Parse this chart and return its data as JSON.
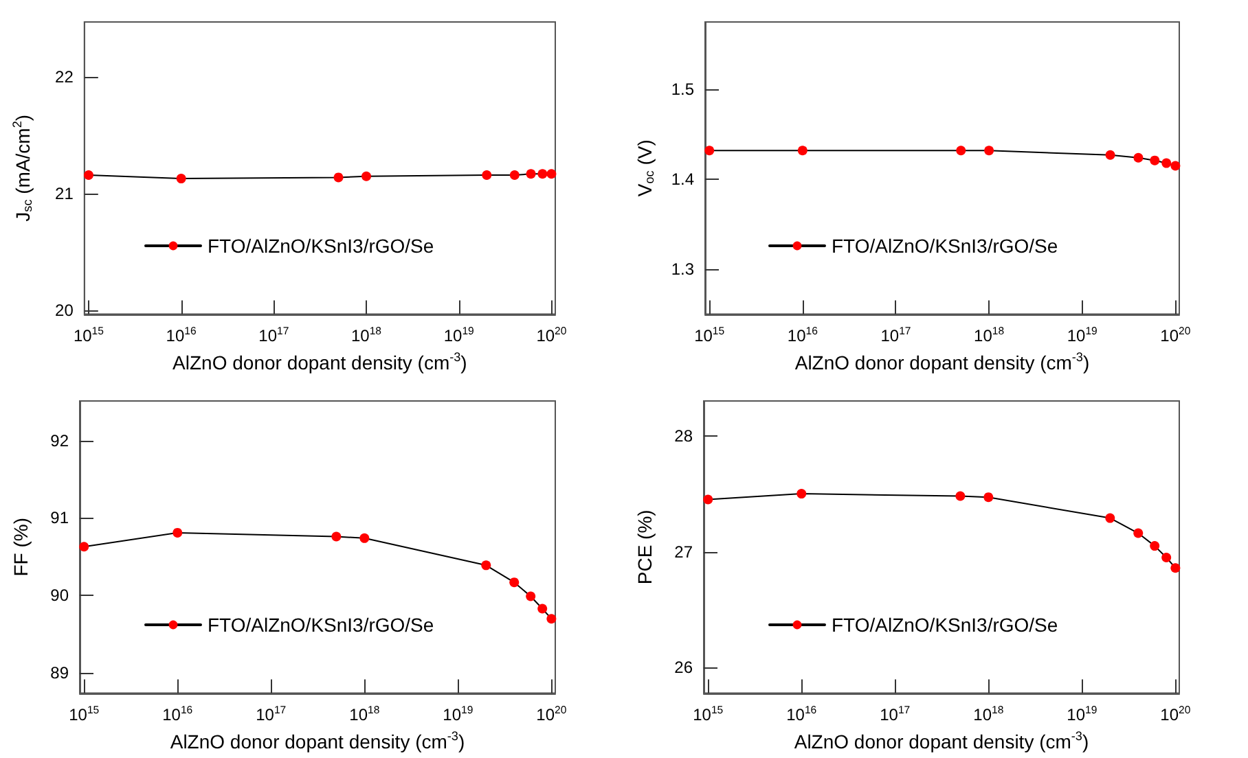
{
  "chart_data": [
    {
      "type": "line",
      "xlabel": "AlZnO donor dopant density (cm$^{-3}$)",
      "ylabel": "J$_{sc}$ (mA/cm$^{2}$)",
      "log": "x",
      "grid": false,
      "legend": "bottom",
      "marker": "circle",
      "line_style": "solid",
      "x": [
        1000000000000000.0,
        1e+16,
        5e+17,
        1e+18,
        2e+19,
        4e+19,
        6e+19,
        8e+19,
        1e+20
      ],
      "xlim": [
        900000000000000.0,
        1.1e+20
      ],
      "xticks": [
        {
          "value": 1000000000000000.0,
          "label": "10$^{15}$"
        },
        {
          "value": 1e+16,
          "label": "10$^{16}$"
        },
        {
          "value": 1e+17,
          "label": "10$^{17}$"
        },
        {
          "value": 1e+18,
          "label": "10$^{18}$"
        },
        {
          "value": 1e+19,
          "label": "10$^{19}$"
        },
        {
          "value": 1e+20,
          "label": "10$^{20}$"
        }
      ],
      "ylim": [
        19.97,
        22.47
      ],
      "yticks": [
        20,
        21,
        22
      ],
      "series": [
        {
          "name": "FTO/AlZnO/KSnI3/rGO/Se",
          "color": "#ff0000",
          "values": [
            21.16,
            21.13,
            21.14,
            21.15,
            21.16,
            21.16,
            21.17,
            21.17,
            21.17
          ]
        }
      ]
    },
    {
      "type": "line",
      "xlabel": "AlZnO donor dopant density (cm$^{-3}$)",
      "ylabel": "V$_{oc}$ (V)",
      "log": "x",
      "grid": false,
      "legend": "bottom",
      "marker": "circle",
      "line_style": "solid",
      "x": [
        1000000000000000.0,
        1e+16,
        5e+17,
        1e+18,
        2e+19,
        4e+19,
        6e+19,
        8e+19,
        1e+20
      ],
      "xlim": [
        900000000000000.0,
        1.1e+20
      ],
      "xticks": [
        {
          "value": 1000000000000000.0,
          "label": "10$^{15}$"
        },
        {
          "value": 1e+16,
          "label": "10$^{16}$"
        },
        {
          "value": 1e+17,
          "label": "10$^{17}$"
        },
        {
          "value": 1e+18,
          "label": "10$^{18}$"
        },
        {
          "value": 1e+19,
          "label": "10$^{19}$"
        },
        {
          "value": 1e+20,
          "label": "10$^{20}$"
        }
      ],
      "ylim": [
        1.25,
        1.575
      ],
      "yticks": [
        1.3,
        1.4,
        1.5
      ],
      "series": [
        {
          "name": "FTO/AlZnO/KSnI3/rGO/Se",
          "color": "#ff0000",
          "values": [
            1.432,
            1.432,
            1.432,
            1.432,
            1.427,
            1.424,
            1.421,
            1.418,
            1.415
          ]
        }
      ]
    },
    {
      "type": "line",
      "xlabel": "AlZnO donor dopant density (cm$^{-3}$)",
      "ylabel": "FF (%)",
      "log": "x",
      "grid": false,
      "legend": "bottom",
      "marker": "circle",
      "line_style": "solid",
      "x": [
        1000000000000000.0,
        1e+16,
        5e+17,
        1e+18,
        2e+19,
        4e+19,
        6e+19,
        8e+19,
        1e+20
      ],
      "xlim": [
        900000000000000.0,
        1.1e+20
      ],
      "xticks": [
        {
          "value": 1000000000000000.0,
          "label": "10$^{15}$"
        },
        {
          "value": 1e+16,
          "label": "10$^{16}$"
        },
        {
          "value": 1e+17,
          "label": "10$^{17}$"
        },
        {
          "value": 1e+18,
          "label": "10$^{18}$"
        },
        {
          "value": 1e+19,
          "label": "10$^{19}$"
        },
        {
          "value": 1e+20,
          "label": "10$^{20}$"
        }
      ],
      "ylim": [
        88.74,
        92.51
      ],
      "yticks": [
        89,
        90,
        91,
        92
      ],
      "series": [
        {
          "name": "FTO/AlZnO/KSnI3/rGO/Se",
          "color": "#ff0000",
          "values": [
            90.63,
            90.81,
            90.76,
            90.74,
            90.39,
            90.17,
            89.99,
            89.83,
            89.7
          ]
        }
      ]
    },
    {
      "type": "line",
      "xlabel": "AlZnO donor dopant density (cm$^{-3}$)",
      "ylabel": "PCE (%)",
      "log": "x",
      "grid": false,
      "legend": "bottom",
      "marker": "circle",
      "line_style": "solid",
      "x": [
        1000000000000000.0,
        1e+16,
        5e+17,
        1e+18,
        2e+19,
        4e+19,
        6e+19,
        8e+19,
        1e+20
      ],
      "xlim": [
        900000000000000.0,
        1.1e+20
      ],
      "xticks": [
        {
          "value": 1000000000000000.0,
          "label": "10$^{15}$"
        },
        {
          "value": 1e+16,
          "label": "10$^{16}$"
        },
        {
          "value": 1e+17,
          "label": "10$^{17}$"
        },
        {
          "value": 1e+18,
          "label": "10$^{18}$"
        },
        {
          "value": 1e+19,
          "label": "10$^{19}$"
        },
        {
          "value": 1e+20,
          "label": "10$^{20}$"
        }
      ],
      "ylim": [
        25.78,
        28.3
      ],
      "yticks": [
        26,
        27,
        28
      ],
      "series": [
        {
          "name": "FTO/AlZnO/KSnI3/rGO/Se",
          "color": "#ff0000",
          "values": [
            27.45,
            27.5,
            27.48,
            27.47,
            27.29,
            27.16,
            27.05,
            26.95,
            26.86
          ]
        }
      ]
    }
  ]
}
